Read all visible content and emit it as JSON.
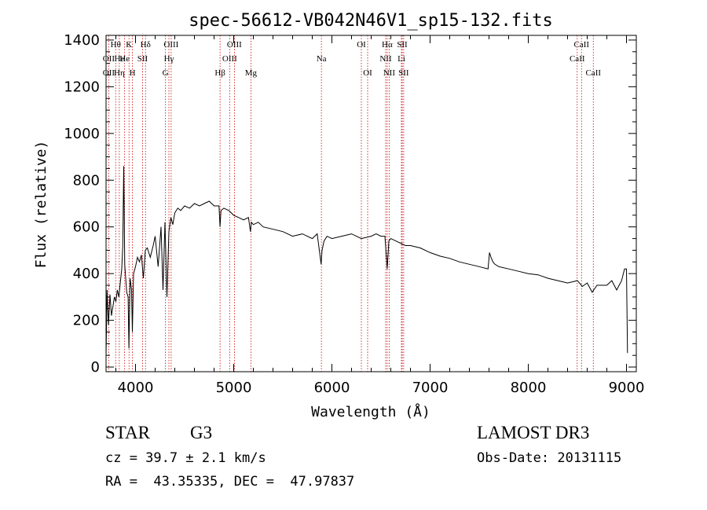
{
  "chart_data": {
    "type": "line",
    "title": "spec-56612-VB042N46V1_sp15-132.fits",
    "xlabel": "Wavelength (Å)",
    "ylabel": "Flux (relative)",
    "xlim": [
      3700,
      9100
    ],
    "ylim": [
      -20,
      1420
    ],
    "xticks": [
      4000,
      5000,
      6000,
      7000,
      8000,
      9000
    ],
    "yticks": [
      0,
      200,
      400,
      600,
      800,
      1000,
      1200,
      1400
    ],
    "grid": false,
    "series": [
      {
        "name": "spectrum",
        "color": "#000000",
        "x": [
          3700,
          3710,
          3725,
          3740,
          3755,
          3770,
          3785,
          3800,
          3815,
          3830,
          3845,
          3860,
          3870,
          3880,
          3890,
          3900,
          3910,
          3925,
          3933,
          3945,
          3960,
          3968,
          3980,
          4000,
          4020,
          4040,
          4060,
          4080,
          4100,
          4120,
          4150,
          4180,
          4200,
          4230,
          4260,
          4280,
          4300,
          4320,
          4340,
          4360,
          4380,
          4400,
          4430,
          4460,
          4500,
          4550,
          4600,
          4650,
          4700,
          4750,
          4800,
          4850,
          4861,
          4870,
          4900,
          4950,
          5000,
          5050,
          5100,
          5150,
          5170,
          5180,
          5200,
          5250,
          5300,
          5400,
          5500,
          5600,
          5700,
          5800,
          5850,
          5890,
          5900,
          5920,
          5950,
          6000,
          6100,
          6200,
          6300,
          6400,
          6450,
          6500,
          6540,
          6563,
          6580,
          6600,
          6650,
          6700,
          6750,
          6800,
          6900,
          7000,
          7100,
          7200,
          7300,
          7400,
          7500,
          7590,
          7605,
          7620,
          7640,
          7660,
          7700,
          7800,
          7900,
          8000,
          8100,
          8200,
          8300,
          8400,
          8450,
          8500,
          8550,
          8600,
          8650,
          8700,
          8750,
          8800,
          8850,
          8900,
          8950,
          8980,
          9000,
          9010
        ],
        "y": [
          50,
          330,
          180,
          310,
          220,
          260,
          300,
          280,
          330,
          300,
          360,
          420,
          520,
          860,
          440,
          380,
          320,
          300,
          80,
          380,
          330,
          150,
          400,
          430,
          470,
          450,
          480,
          380,
          500,
          510,
          470,
          520,
          560,
          430,
          600,
          330,
          620,
          300,
          580,
          640,
          610,
          660,
          680,
          670,
          690,
          680,
          700,
          690,
          700,
          710,
          690,
          690,
          600,
          670,
          680,
          670,
          650,
          640,
          630,
          640,
          580,
          620,
          610,
          620,
          600,
          590,
          580,
          560,
          570,
          550,
          570,
          440,
          500,
          540,
          560,
          550,
          560,
          570,
          550,
          560,
          570,
          560,
          560,
          420,
          540,
          550,
          540,
          530,
          520,
          520,
          510,
          490,
          475,
          465,
          450,
          440,
          430,
          420,
          490,
          470,
          450,
          440,
          430,
          420,
          410,
          400,
          395,
          380,
          370,
          360,
          365,
          370,
          345,
          360,
          320,
          350,
          350,
          350,
          370,
          330,
          370,
          420,
          420,
          60
        ]
      }
    ],
    "lines": [
      {
        "label": "Hθ",
        "x": 3798,
        "row": 0
      },
      {
        "label": "OII",
        "x": 3727,
        "row": 1
      },
      {
        "label": "OII",
        "x": 3727,
        "row": 2
      },
      {
        "label": "He",
        "x": 3835,
        "row": 1
      },
      {
        "label": "Hη",
        "x": 3835,
        "row": 2
      },
      {
        "label": "K",
        "x": 3934,
        "row": 0
      },
      {
        "label": "He",
        "x": 3889,
        "row": 1
      },
      {
        "label": "H",
        "x": 3969,
        "row": 2
      },
      {
        "label": "Hδ",
        "x": 4102,
        "row": 0
      },
      {
        "label": "SII",
        "x": 4072,
        "row": 1
      },
      {
        "label": "OIII",
        "x": 4363,
        "row": 0
      },
      {
        "label": "Hγ",
        "x": 4340,
        "row": 1
      },
      {
        "label": "G",
        "x": 4305,
        "row": 2
      },
      {
        "label": "Hβ",
        "x": 4861,
        "row": 2
      },
      {
        "label": "OIII",
        "x": 5007,
        "row": 0
      },
      {
        "label": "OIII",
        "x": 4959,
        "row": 1
      },
      {
        "label": "Mg",
        "x": 5175,
        "row": 2
      },
      {
        "label": "Na",
        "x": 5893,
        "row": 1
      },
      {
        "label": "OI",
        "x": 6300,
        "row": 0
      },
      {
        "label": "OI",
        "x": 6364,
        "row": 2
      },
      {
        "label": "Hα",
        "x": 6563,
        "row": 0
      },
      {
        "label": "NII",
        "x": 6548,
        "row": 1
      },
      {
        "label": "NII",
        "x": 6583,
        "row": 2
      },
      {
        "label": "SII",
        "x": 6716,
        "row": 0
      },
      {
        "label": "Li",
        "x": 6708,
        "row": 1
      },
      {
        "label": "SII",
        "x": 6731,
        "row": 2
      },
      {
        "label": "CaII",
        "x": 8542,
        "row": 0
      },
      {
        "label": "CaII",
        "x": 8498,
        "row": 1
      },
      {
        "label": "CaII",
        "x": 8662,
        "row": 2
      }
    ],
    "line_color": "#cc0000"
  },
  "footer": {
    "object_type": "STAR",
    "subclass": "G3",
    "survey": "LAMOST DR3",
    "redshift": "cz = 39.7 ± 2.1 km/s",
    "obs_date": "Obs-Date: 20131115",
    "coords": "RA =  43.35335, DEC =  47.97837"
  }
}
